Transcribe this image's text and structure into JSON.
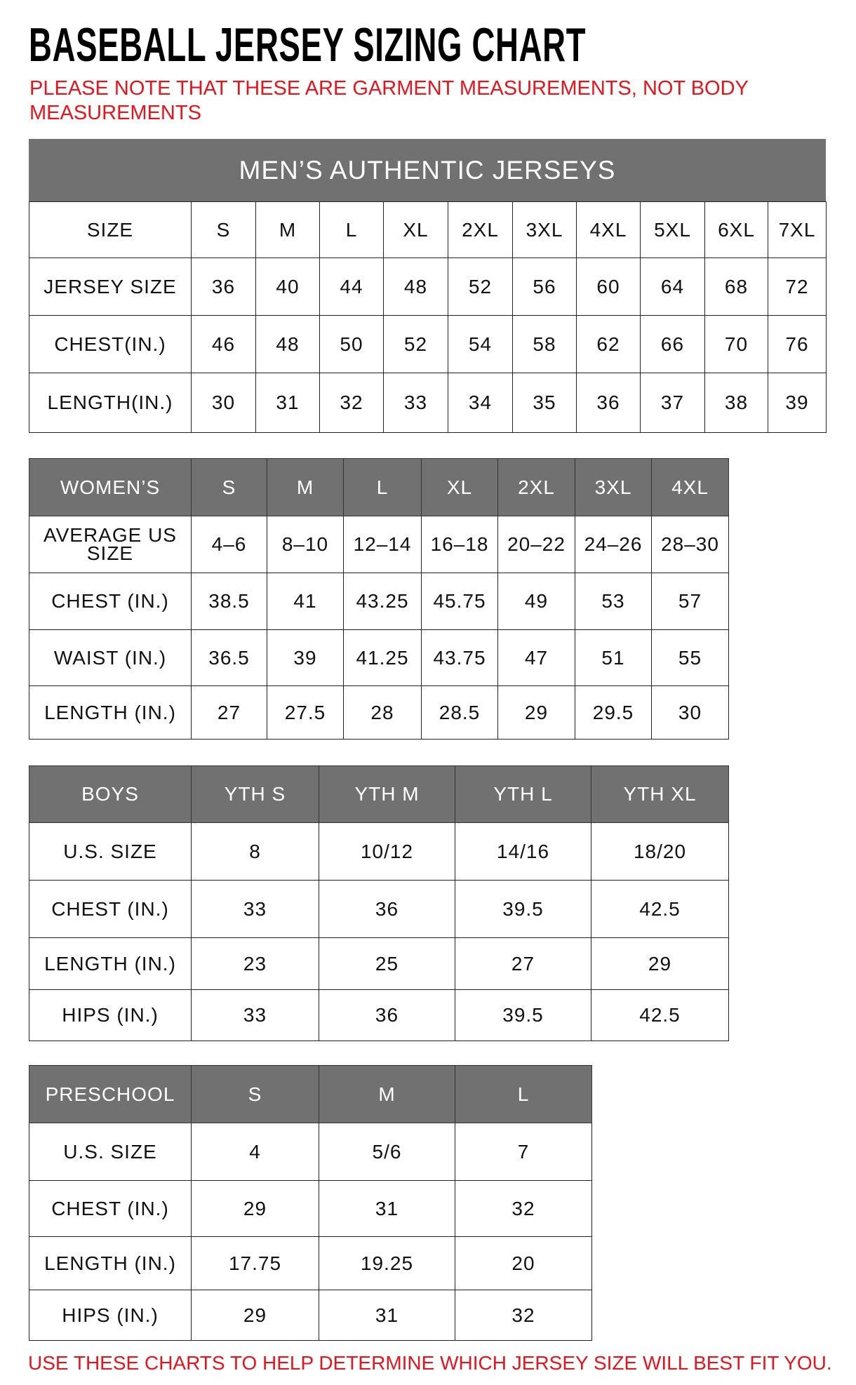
{
  "title": "BASEBALL JERSEY SIZING CHART",
  "note": "PLEASE NOTE THAT THESE ARE GARMENT MEASUREMENTS, NOT BODY MEASUREMENTS",
  "footer_note": "USE THESE CHARTS TO HELP DETERMINE WHICH JERSEY SIZE WILL BEST FIT YOU.",
  "colors": {
    "header_bg": "#717171",
    "note_red": "#e8141c"
  },
  "mens": {
    "banner": "MEN’S AUTHENTIC JERSEYS",
    "rows": [
      [
        "SIZE",
        "S",
        "M",
        "L",
        "XL",
        "2XL",
        "3XL",
        "4XL",
        "5XL",
        "6XL",
        "7XL"
      ],
      [
        "JERSEY SIZE",
        "36",
        "40",
        "44",
        "48",
        "52",
        "56",
        "60",
        "64",
        "68",
        "72"
      ],
      [
        "CHEST(IN.)",
        "46",
        "48",
        "50",
        "52",
        "54",
        "58",
        "62",
        "66",
        "70",
        "76"
      ],
      [
        "LENGTH(IN.)",
        "30",
        "31",
        "32",
        "33",
        "34",
        "35",
        "36",
        "37",
        "38",
        "39"
      ]
    ]
  },
  "womens": {
    "rows": [
      [
        "WOMEN’S",
        "S",
        "M",
        "L",
        "XL",
        "2XL",
        "3XL",
        "4XL"
      ],
      [
        "AVERAGE US SIZE",
        "4–6",
        "8–10",
        "12–14",
        "16–18",
        "20–22",
        "24–26",
        "28–30"
      ],
      [
        "CHEST (IN.)",
        "38.5",
        "41",
        "43.25",
        "45.75",
        "49",
        "53",
        "57"
      ],
      [
        "WAIST (IN.)",
        "36.5",
        "39",
        "41.25",
        "43.75",
        "47",
        "51",
        "55"
      ],
      [
        "LENGTH (IN.)",
        "27",
        "27.5",
        "28",
        "28.5",
        "29",
        "29.5",
        "30"
      ]
    ]
  },
  "boys": {
    "rows": [
      [
        "BOYS",
        "YTH S",
        "YTH M",
        "YTH L",
        "YTH XL"
      ],
      [
        "U.S. SIZE",
        "8",
        "10/12",
        "14/16",
        "18/20"
      ],
      [
        "CHEST (IN.)",
        "33",
        "36",
        "39.5",
        "42.5"
      ],
      [
        "LENGTH (IN.)",
        "23",
        "25",
        "27",
        "29"
      ],
      [
        "HIPS (IN.)",
        "33",
        "36",
        "39.5",
        "42.5"
      ]
    ]
  },
  "preschool": {
    "rows": [
      [
        "PRESCHOOL",
        "S",
        "M",
        "L"
      ],
      [
        "U.S. SIZE",
        "4",
        "5/6",
        "7"
      ],
      [
        "CHEST (IN.)",
        "29",
        "31",
        "32"
      ],
      [
        "LENGTH (IN.)",
        "17.75",
        "19.25",
        "20"
      ],
      [
        "HIPS (IN.)",
        "29",
        "31",
        "32"
      ]
    ]
  }
}
